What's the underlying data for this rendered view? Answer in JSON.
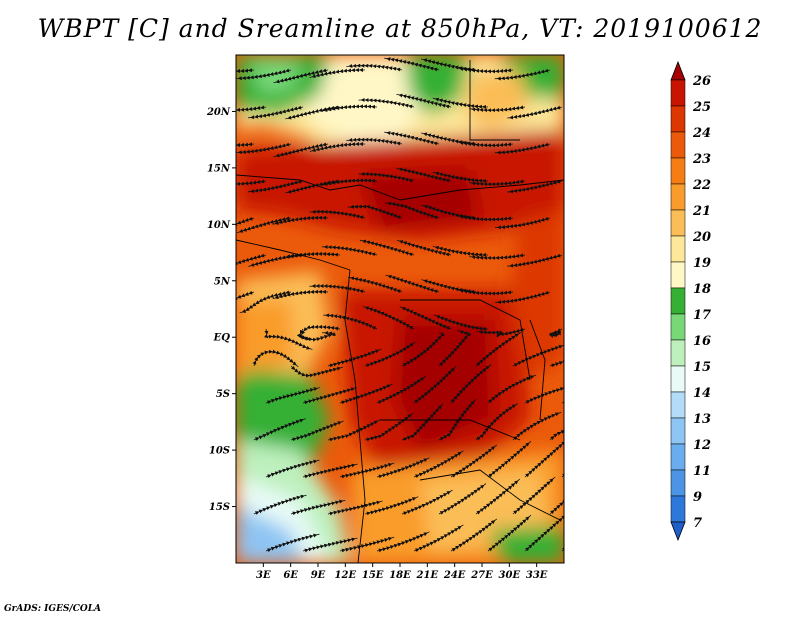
{
  "title": "WBPT [C] and Sreamline at 850hPa, VT: 2019100612",
  "footer": "GrADS: IGES/COLA",
  "map": {
    "lon_range": [
      0,
      36
    ],
    "lat_range": [
      -20,
      25
    ],
    "lat_ticks": [
      {
        "value": 20,
        "label": "20N"
      },
      {
        "value": 15,
        "label": "15N"
      },
      {
        "value": 10,
        "label": "10N"
      },
      {
        "value": 5,
        "label": "5N"
      },
      {
        "value": 0,
        "label": "EQ"
      },
      {
        "value": -5,
        "label": "5S"
      },
      {
        "value": -10,
        "label": "10S"
      },
      {
        "value": -15,
        "label": "15S"
      }
    ],
    "lon_ticks": [
      {
        "value": 3,
        "label": "3E"
      },
      {
        "value": 6,
        "label": "6E"
      },
      {
        "value": 9,
        "label": "9E"
      },
      {
        "value": 12,
        "label": "12E"
      },
      {
        "value": 15,
        "label": "15E"
      },
      {
        "value": 18,
        "label": "18E"
      },
      {
        "value": 21,
        "label": "21E"
      },
      {
        "value": 24,
        "label": "24E"
      },
      {
        "value": 27,
        "label": "27E"
      },
      {
        "value": 30,
        "label": "30E"
      },
      {
        "value": 33,
        "label": "33E"
      }
    ]
  },
  "colorbar": {
    "levels": [
      {
        "label": "26",
        "color": "#a50000"
      },
      {
        "label": "25",
        "color": "#c81400"
      },
      {
        "label": "24",
        "color": "#dc3700"
      },
      {
        "label": "23",
        "color": "#eb5a0a"
      },
      {
        "label": "22",
        "color": "#f57d14"
      },
      {
        "label": "21",
        "color": "#f99c2c"
      },
      {
        "label": "20",
        "color": "#fbbd57"
      },
      {
        "label": "19",
        "color": "#fde89a"
      },
      {
        "label": "18",
        "color": "#fff7c6"
      },
      {
        "label": "17",
        "color": "#35b035"
      },
      {
        "label": "16",
        "color": "#78d878"
      },
      {
        "label": "15",
        "color": "#bdf0bd"
      },
      {
        "label": "14",
        "color": "#e8fbf6"
      },
      {
        "label": "13",
        "color": "#b2dcf8"
      },
      {
        "label": "12",
        "color": "#8ec5f4"
      },
      {
        "label": "11",
        "color": "#6aadee"
      },
      {
        "label": "9",
        "color": "#4b94e6"
      },
      {
        "label": "7",
        "color": "#2e78dc"
      }
    ],
    "top_color": "#a50000",
    "bottom_color": "#1e5fcc"
  }
}
